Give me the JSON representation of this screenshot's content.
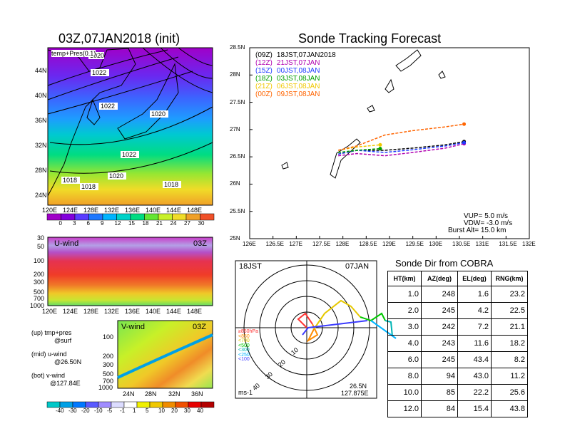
{
  "left_title": "03Z,07JAN2018 (init)",
  "right_title": "Sonde Tracking Forecast",
  "top_map": {
    "label": "temp+Pres(0.1)",
    "lat_labels": [
      "44N",
      "40N",
      "36N",
      "32N",
      "28N",
      "24N"
    ],
    "lon_labels": [
      "120E",
      "124E",
      "128E",
      "132E",
      "136E",
      "140E",
      "144E",
      "148E"
    ],
    "contour_labels": [
      "1020",
      "1022",
      "1022",
      "1020",
      "1022",
      "1020",
      "1018",
      "1018",
      "1018"
    ],
    "colorbar_labels": [
      "0",
      "3",
      "6",
      "9",
      "12",
      "15",
      "18",
      "21",
      "24",
      "27",
      "30"
    ],
    "colorbar_colors": [
      "#a000c8",
      "#8200dc",
      "#5a3cff",
      "#1e78ff",
      "#00b4ff",
      "#00d2c8",
      "#00dc82",
      "#64e632",
      "#c8f028",
      "#f0dc28",
      "#f0a028",
      "#f05028"
    ]
  },
  "uwind": {
    "label": "U-wind",
    "time": "03Z",
    "p_labels": [
      "30",
      "50",
      "100",
      "200",
      "300",
      "500",
      "700",
      "1000"
    ],
    "lon_labels": [
      "120E",
      "124E",
      "128E",
      "132E",
      "136E",
      "140E",
      "144E",
      "148E"
    ]
  },
  "vwind": {
    "label": "V-wind",
    "time": "03Z",
    "p_labels": [
      "100",
      "200",
      "300",
      "500",
      "700",
      "1000"
    ],
    "lat_labels": [
      "24N",
      "28N",
      "32N",
      "36N"
    ]
  },
  "side_notes": [
    {
      "a": "(up) tmp+pres",
      "b": "@surf"
    },
    {
      "a": "(mid) u-wind",
      "b": "@26.50N"
    },
    {
      "a": "(bot) v-wind",
      "b": "@127.84E"
    }
  ],
  "wind_colorbar": {
    "labels": [
      "-40",
      "-30",
      "-20",
      "-10",
      "-5",
      "-1",
      "1",
      "5",
      "10",
      "20",
      "30",
      "40"
    ],
    "colors": [
      "#00c8c8",
      "#00a0e6",
      "#0078ff",
      "#5a5aff",
      "#a08cff",
      "#dcdcff",
      "#ffffff",
      "#f0f000",
      "#f0c800",
      "#f08c00",
      "#f05000",
      "#e60000",
      "#b40000"
    ]
  },
  "track": {
    "lat_labels": [
      "28.5N",
      "28N",
      "27.5N",
      "27N",
      "26.5N",
      "26N",
      "25.5N",
      "25N"
    ],
    "lon_labels": [
      "126E",
      "126.5E",
      "127E",
      "127.5E",
      "128E",
      "128.5E",
      "129E",
      "129.5E",
      "130E",
      "130.5E",
      "131E",
      "131.5E",
      "132E"
    ],
    "legend": [
      {
        "code": "(09Z)",
        "time": "18JST,07JAN2018",
        "color": "#000000"
      },
      {
        "code": "(12Z)",
        "time": "21JST,07JAN",
        "color": "#b000b0"
      },
      {
        "code": "(15Z)",
        "time": "00JST,08JAN",
        "color": "#1e3cff"
      },
      {
        "code": "(18Z)",
        "time": "03JST,08JAN",
        "color": "#00a000"
      },
      {
        "code": "(21Z)",
        "time": "06JST,08JAN",
        "color": "#f0c800"
      },
      {
        "code": "(00Z)",
        "time": "09JST,08JAN",
        "color": "#ff6400"
      }
    ],
    "params": [
      {
        "k": "VUP=",
        "v": "5.0 m/s"
      },
      {
        "k": "VDW=",
        "v": "-3.0 m/s"
      },
      {
        "k": "Burst Alt=",
        "v": "15.0 km"
      }
    ]
  },
  "polar": {
    "time": "18JST",
    "date": "07JAN",
    "ring_labels": [
      "10",
      "20",
      "30",
      "40"
    ],
    "unit": "ms-1",
    "lat": "26.5N",
    "lon": "127.875E",
    "height_legend": [
      {
        "t": "≥850hPa",
        "c": "#ff3232"
      },
      {
        "t": "<850",
        "c": "#ff8c00"
      },
      {
        "t": "<700",
        "c": "#e6c800"
      },
      {
        "t": "<500",
        "c": "#00c800"
      },
      {
        "t": "<300",
        "c": "#00b4b4"
      },
      {
        "t": "<250",
        "c": "#00b4ff"
      },
      {
        "t": "<100",
        "c": "#3c3cff"
      }
    ]
  },
  "sonde_dir": {
    "title": "Sonde Dir from COBRA",
    "headers": [
      "HT(km)",
      "AZ(deg)",
      "EL(deg)",
      "RNG(km)"
    ],
    "rows": [
      [
        "1.0",
        "248",
        "1.6",
        "23.2"
      ],
      [
        "2.0",
        "245",
        "4.2",
        "22.5"
      ],
      [
        "3.0",
        "242",
        "7.2",
        "21.1"
      ],
      [
        "4.0",
        "243",
        "11.6",
        "18.2"
      ],
      [
        "6.0",
        "245",
        "43.4",
        "8.2"
      ],
      [
        "8.0",
        "94",
        "43.0",
        "11.2"
      ],
      [
        "10.0",
        "85",
        "22.2",
        "25.6"
      ],
      [
        "12.0",
        "84",
        "15.4",
        "43.8"
      ]
    ]
  },
  "chart_data": [
    {
      "type": "line",
      "title": "Sonde Tracking Forecast",
      "xlim": [
        126,
        132
      ],
      "ylim": [
        25,
        28.5
      ],
      "series": [
        {
          "name": "(09Z) 18JST,07JAN2018",
          "x": [
            127.9,
            128.3,
            128.9,
            129.5,
            130.2,
            130.6
          ],
          "y": [
            26.55,
            26.62,
            26.62,
            26.66,
            26.72,
            26.78
          ]
        },
        {
          "name": "(12Z) 21JST,07JAN",
          "x": [
            127.9,
            128.3,
            128.9,
            129.5,
            130.2,
            130.6
          ],
          "y": [
            26.52,
            26.56,
            26.52,
            26.58,
            26.66,
            26.74
          ]
        },
        {
          "name": "(15Z) 00JST,08JAN",
          "x": [
            127.9,
            128.3,
            128.9,
            129.5,
            130.2,
            130.6
          ],
          "y": [
            26.55,
            26.62,
            26.58,
            26.63,
            26.7,
            26.76
          ]
        },
        {
          "name": "(18Z) 03JST,08JAN",
          "x": [
            127.9,
            128.3,
            128.8
          ],
          "y": [
            26.58,
            26.62,
            26.65
          ]
        },
        {
          "name": "(21Z) 06JST,08JAN",
          "x": [
            127.9,
            128.3,
            128.8
          ],
          "y": [
            26.62,
            26.68,
            26.72
          ]
        },
        {
          "name": "(00Z) 09JST,08JAN",
          "x": [
            127.9,
            128.3,
            128.9,
            129.5,
            130.2,
            130.6
          ],
          "y": [
            26.62,
            26.7,
            26.9,
            26.98,
            27.05,
            27.1
          ]
        }
      ]
    },
    {
      "type": "table",
      "title": "Sonde Dir from COBRA",
      "columns": [
        "HT(km)",
        "AZ(deg)",
        "EL(deg)",
        "RNG(km)"
      ],
      "rows": [
        [
          1.0,
          248,
          1.6,
          23.2
        ],
        [
          2.0,
          245,
          4.2,
          22.5
        ],
        [
          3.0,
          242,
          7.2,
          21.1
        ],
        [
          4.0,
          243,
          11.6,
          18.2
        ],
        [
          6.0,
          245,
          43.4,
          8.2
        ],
        [
          8.0,
          94,
          43.0,
          11.2
        ],
        [
          10.0,
          85,
          22.2,
          25.6
        ],
        [
          12.0,
          84,
          15.4,
          43.8
        ]
      ]
    }
  ]
}
